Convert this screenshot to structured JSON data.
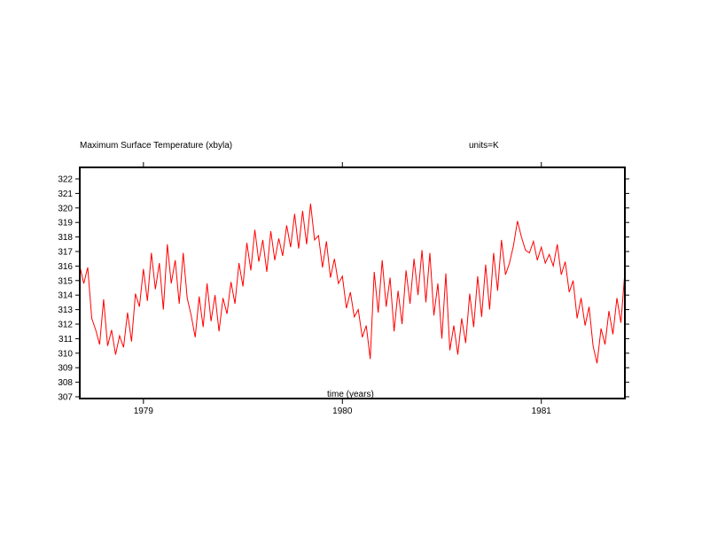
{
  "chart_data": {
    "type": "line",
    "title": "Maximum Surface Temperature (xbyla)",
    "units_label": "units=K",
    "xlabel": "time (years)",
    "ylabel": "",
    "ylim": [
      307,
      322
    ],
    "xlim": [
      1978.68,
      1981.42
    ],
    "yticks": [
      307,
      308,
      309,
      310,
      311,
      312,
      313,
      314,
      315,
      316,
      317,
      318,
      319,
      320,
      321,
      322
    ],
    "xticks": [
      {
        "value": 1979,
        "label": "1979"
      },
      {
        "value": 1980,
        "label": "1980"
      },
      {
        "value": 1981,
        "label": "1981"
      }
    ],
    "grid": false,
    "series": [
      {
        "color": "#ff0000",
        "x": [
          1978.68,
          1978.7,
          1978.72,
          1978.74,
          1978.76,
          1978.78,
          1978.8,
          1978.82,
          1978.84,
          1978.86,
          1978.88,
          1978.9,
          1978.92,
          1978.94,
          1978.96,
          1978.98,
          1979.0,
          1979.02,
          1979.04,
          1979.06,
          1979.08,
          1979.1,
          1979.12,
          1979.14,
          1979.16,
          1979.18,
          1979.2,
          1979.22,
          1979.24,
          1979.26,
          1979.28,
          1979.3,
          1979.32,
          1979.34,
          1979.36,
          1979.38,
          1979.4,
          1979.42,
          1979.44,
          1979.46,
          1979.48,
          1979.5,
          1979.52,
          1979.54,
          1979.56,
          1979.58,
          1979.6,
          1979.62,
          1979.64,
          1979.66,
          1979.68,
          1979.7,
          1979.72,
          1979.74,
          1979.76,
          1979.78,
          1979.8,
          1979.82,
          1979.84,
          1979.86,
          1979.88,
          1979.9,
          1979.92,
          1979.94,
          1979.96,
          1979.98,
          1980.0,
          1980.02,
          1980.04,
          1980.06,
          1980.08,
          1980.1,
          1980.12,
          1980.14,
          1980.16,
          1980.18,
          1980.2,
          1980.22,
          1980.24,
          1980.26,
          1980.28,
          1980.3,
          1980.32,
          1980.34,
          1980.36,
          1980.38,
          1980.4,
          1980.42,
          1980.44,
          1980.46,
          1980.48,
          1980.5,
          1980.52,
          1980.54,
          1980.56,
          1980.58,
          1980.6,
          1980.62,
          1980.64,
          1980.66,
          1980.68,
          1980.7,
          1980.72,
          1980.74,
          1980.76,
          1980.78,
          1980.8,
          1980.82,
          1980.84,
          1980.86,
          1980.88,
          1980.9,
          1980.92,
          1980.94,
          1980.96,
          1980.98,
          1981.0,
          1981.02,
          1981.04,
          1981.06,
          1981.08,
          1981.1,
          1981.12,
          1981.14,
          1981.16,
          1981.18,
          1981.2,
          1981.22,
          1981.24,
          1981.26,
          1981.28,
          1981.3,
          1981.32,
          1981.34,
          1981.36,
          1981.38,
          1981.4,
          1981.42
        ],
        "y": [
          316.0,
          314.8,
          315.9,
          312.4,
          311.6,
          310.6,
          313.7,
          310.5,
          311.6,
          309.9,
          311.2,
          310.4,
          312.8,
          310.8,
          314.1,
          313.2,
          315.8,
          313.6,
          316.9,
          314.4,
          316.2,
          313.0,
          317.5,
          314.8,
          316.4,
          313.4,
          316.9,
          313.8,
          312.6,
          311.1,
          313.9,
          311.8,
          314.8,
          312.2,
          314.0,
          311.5,
          313.8,
          312.7,
          314.9,
          313.4,
          316.2,
          314.6,
          317.6,
          315.7,
          318.5,
          316.3,
          317.8,
          315.6,
          318.4,
          316.4,
          317.9,
          316.7,
          318.8,
          317.3,
          319.6,
          317.2,
          319.8,
          317.5,
          320.3,
          317.8,
          318.1,
          315.9,
          317.7,
          315.2,
          316.5,
          314.8,
          315.3,
          313.1,
          314.2,
          312.5,
          313.0,
          311.1,
          311.9,
          309.6,
          315.6,
          312.8,
          316.4,
          313.2,
          315.2,
          311.5,
          314.3,
          312.0,
          315.7,
          313.4,
          316.5,
          314.0,
          317.1,
          313.5,
          316.9,
          312.6,
          314.8,
          311.0,
          315.5,
          310.2,
          311.9,
          309.9,
          312.4,
          310.7,
          314.1,
          311.8,
          315.3,
          312.5,
          316.1,
          313.0,
          316.9,
          314.3,
          317.8,
          315.4,
          316.2,
          317.4,
          319.1,
          318.0,
          317.1,
          316.9,
          317.7,
          316.4,
          317.3,
          316.2,
          316.8,
          316.0,
          317.5,
          315.4,
          316.3,
          314.2,
          315.0,
          312.4,
          313.8,
          311.9,
          313.2,
          310.5,
          309.3,
          311.7,
          310.6,
          312.9,
          311.3,
          313.8,
          312.1,
          315.6
        ]
      }
    ]
  }
}
